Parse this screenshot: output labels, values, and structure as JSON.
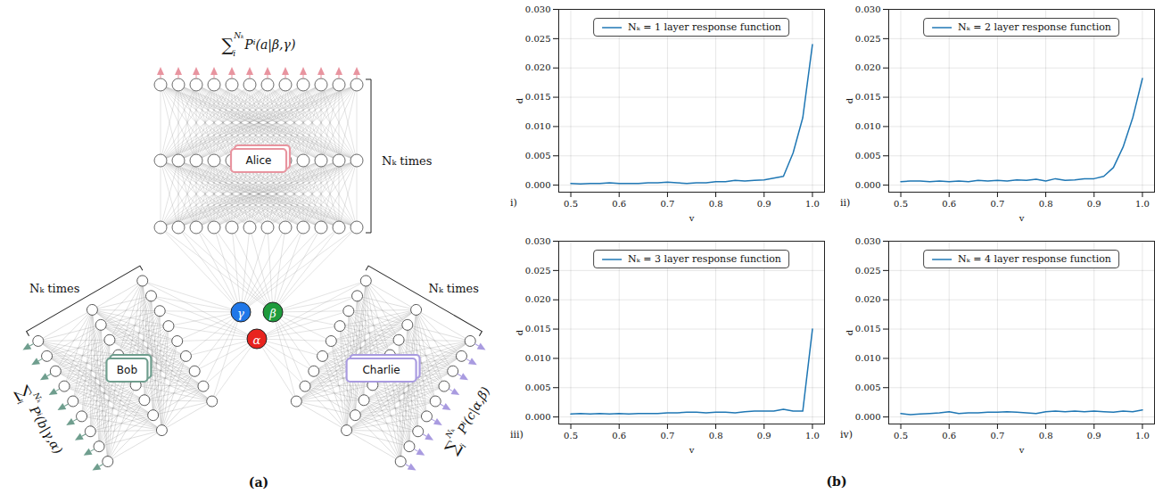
{
  "panel_labels": [
    "(a)",
    "(b)"
  ],
  "diagram": {
    "sources": [
      {
        "label": "γ",
        "color": "#1f77e8"
      },
      {
        "label": "β",
        "color": "#1e9b3c"
      },
      {
        "label": "α",
        "color": "#e8231e"
      }
    ],
    "parties": [
      {
        "name": "Alice",
        "color": "#e8949f",
        "repeat": "Nₖ times",
        "inputs": [
          "β",
          "γ"
        ],
        "output": {
          "operator": "∑",
          "upper": "Nₖ",
          "lower": "i",
          "term": "Pⁱ(a|β,γ)"
        }
      },
      {
        "name": "Bob",
        "color": "#6f9e8e",
        "repeat": "Nₖ times",
        "inputs": [
          "γ",
          "α"
        ],
        "output": {
          "operator": "∑",
          "upper": "Nₖ",
          "lower": "i",
          "term": "Pⁱ(b|γ,α)"
        }
      },
      {
        "name": "Charlie",
        "color": "#a99be0",
        "repeat": "Nₖ times",
        "inputs": [
          "α",
          "β"
        ],
        "output": {
          "operator": "∑",
          "upper": "Nₖ",
          "lower": "i",
          "term": "Pⁱ(c|α,β)"
        }
      }
    ]
  },
  "chart_data": [
    {
      "type": "line",
      "panel_label": "i)",
      "xlabel": "v",
      "ylabel": "d",
      "grid": true,
      "legend": "upper center",
      "x": [
        0.5,
        0.52,
        0.54,
        0.56,
        0.58,
        0.6,
        0.62,
        0.64,
        0.66,
        0.68,
        0.7,
        0.72,
        0.74,
        0.76,
        0.78,
        0.8,
        0.82,
        0.84,
        0.86,
        0.88,
        0.9,
        0.92,
        0.94,
        0.96,
        0.98,
        1.0
      ],
      "xlim": [
        0.475,
        1.025
      ],
      "xticks": [
        0.5,
        0.6,
        0.7,
        0.8,
        0.9,
        {
          "value": 1,
          "label": "1.0"
        }
      ],
      "ylim": [
        -0.0012,
        0.03
      ],
      "yticks": [
        {
          "value": 0,
          "label": "0.000"
        },
        {
          "value": 0.005,
          "label": "0.005"
        },
        {
          "value": 0.01,
          "label": "0.010"
        },
        {
          "value": 0.015,
          "label": "0.015"
        },
        {
          "value": 0.02,
          "label": "0.020"
        },
        {
          "value": 0.025,
          "label": "0.025"
        },
        {
          "value": 0.03,
          "label": "0.030"
        }
      ],
      "series": [
        {
          "name": "Nₖ = 1 layer response function",
          "color": "#1f77b4",
          "values": [
            0.0003,
            0.0002,
            0.0003,
            0.0003,
            0.0004,
            0.0003,
            0.0003,
            0.0003,
            0.0004,
            0.0004,
            0.0005,
            0.0004,
            0.0003,
            0.0004,
            0.0004,
            0.0006,
            0.0006,
            0.0008,
            0.0007,
            0.0008,
            0.0009,
            0.0012,
            0.0015,
            0.0055,
            0.0115,
            0.024
          ]
        }
      ]
    },
    {
      "type": "line",
      "panel_label": "ii)",
      "xlabel": "v",
      "ylabel": "d",
      "grid": true,
      "legend": "upper center",
      "x": [
        0.5,
        0.52,
        0.54,
        0.56,
        0.58,
        0.6,
        0.62,
        0.64,
        0.66,
        0.68,
        0.7,
        0.72,
        0.74,
        0.76,
        0.78,
        0.8,
        0.82,
        0.84,
        0.86,
        0.88,
        0.9,
        0.92,
        0.94,
        0.96,
        0.98,
        1.0
      ],
      "xlim": [
        0.475,
        1.025
      ],
      "xticks": [
        0.5,
        0.6,
        0.7,
        0.8,
        0.9,
        {
          "value": 1,
          "label": "1.0"
        }
      ],
      "ylim": [
        -0.0012,
        0.03
      ],
      "yticks": [
        {
          "value": 0,
          "label": "0.000"
        },
        {
          "value": 0.005,
          "label": "0.005"
        },
        {
          "value": 0.01,
          "label": "0.010"
        },
        {
          "value": 0.015,
          "label": "0.015"
        },
        {
          "value": 0.02,
          "label": "0.020"
        },
        {
          "value": 0.025,
          "label": "0.025"
        },
        {
          "value": 0.03,
          "label": "0.030"
        }
      ],
      "series": [
        {
          "name": "Nₖ = 2 layer response function",
          "color": "#1f77b4",
          "values": [
            0.0006,
            0.0007,
            0.0007,
            0.0006,
            0.0007,
            0.0006,
            0.0007,
            0.0006,
            0.0008,
            0.0007,
            0.0008,
            0.0007,
            0.0009,
            0.0008,
            0.001,
            0.0007,
            0.0011,
            0.0008,
            0.0009,
            0.0011,
            0.0011,
            0.0015,
            0.003,
            0.0065,
            0.0115,
            0.0182
          ]
        }
      ]
    },
    {
      "type": "line",
      "panel_label": "iii)",
      "xlabel": "v",
      "ylabel": "d",
      "grid": true,
      "legend": "upper center",
      "x": [
        0.5,
        0.52,
        0.54,
        0.56,
        0.58,
        0.6,
        0.62,
        0.64,
        0.66,
        0.68,
        0.7,
        0.72,
        0.74,
        0.76,
        0.78,
        0.8,
        0.82,
        0.84,
        0.86,
        0.88,
        0.9,
        0.92,
        0.94,
        0.96,
        0.98,
        1.0
      ],
      "xlim": [
        0.475,
        1.025
      ],
      "xticks": [
        0.5,
        0.6,
        0.7,
        0.8,
        0.9,
        {
          "value": 1,
          "label": "1.0"
        }
      ],
      "ylim": [
        -0.0012,
        0.03
      ],
      "yticks": [
        {
          "value": 0,
          "label": "0.000"
        },
        {
          "value": 0.005,
          "label": "0.005"
        },
        {
          "value": 0.01,
          "label": "0.010"
        },
        {
          "value": 0.015,
          "label": "0.015"
        },
        {
          "value": 0.02,
          "label": "0.020"
        },
        {
          "value": 0.025,
          "label": "0.025"
        },
        {
          "value": 0.03,
          "label": "0.030"
        }
      ],
      "series": [
        {
          "name": "Nₖ = 3 layer response function",
          "color": "#1f77b4",
          "values": [
            0.0005,
            0.0006,
            0.0005,
            0.0006,
            0.0005,
            0.0006,
            0.0005,
            0.0006,
            0.0006,
            0.0006,
            0.0007,
            0.0007,
            0.0008,
            0.0008,
            0.0007,
            0.0008,
            0.0008,
            0.0007,
            0.0009,
            0.001,
            0.001,
            0.001,
            0.0013,
            0.001,
            0.001,
            0.015
          ]
        }
      ]
    },
    {
      "type": "line",
      "panel_label": "iv)",
      "xlabel": "v",
      "ylabel": "d",
      "grid": true,
      "legend": "upper center",
      "x": [
        0.5,
        0.52,
        0.54,
        0.56,
        0.58,
        0.6,
        0.62,
        0.64,
        0.66,
        0.68,
        0.7,
        0.72,
        0.74,
        0.76,
        0.78,
        0.8,
        0.82,
        0.84,
        0.86,
        0.88,
        0.9,
        0.92,
        0.94,
        0.96,
        0.98,
        1.0
      ],
      "xlim": [
        0.475,
        1.025
      ],
      "xticks": [
        0.5,
        0.6,
        0.7,
        0.8,
        0.9,
        {
          "value": 1,
          "label": "1.0"
        }
      ],
      "ylim": [
        -0.0012,
        0.03
      ],
      "yticks": [
        {
          "value": 0,
          "label": "0.000"
        },
        {
          "value": 0.005,
          "label": "0.005"
        },
        {
          "value": 0.01,
          "label": "0.010"
        },
        {
          "value": 0.015,
          "label": "0.015"
        },
        {
          "value": 0.02,
          "label": "0.020"
        },
        {
          "value": 0.025,
          "label": "0.025"
        },
        {
          "value": 0.03,
          "label": "0.030"
        }
      ],
      "series": [
        {
          "name": "Nₖ = 4 layer response function",
          "color": "#1f77b4",
          "values": [
            0.0006,
            0.0004,
            0.0005,
            0.0006,
            0.0007,
            0.0009,
            0.0006,
            0.0007,
            0.0007,
            0.0008,
            0.0008,
            0.0009,
            0.0008,
            0.0007,
            0.0006,
            0.0009,
            0.001,
            0.0009,
            0.001,
            0.0009,
            0.001,
            0.0009,
            0.0008,
            0.001,
            0.0009,
            0.0012
          ]
        }
      ]
    }
  ]
}
